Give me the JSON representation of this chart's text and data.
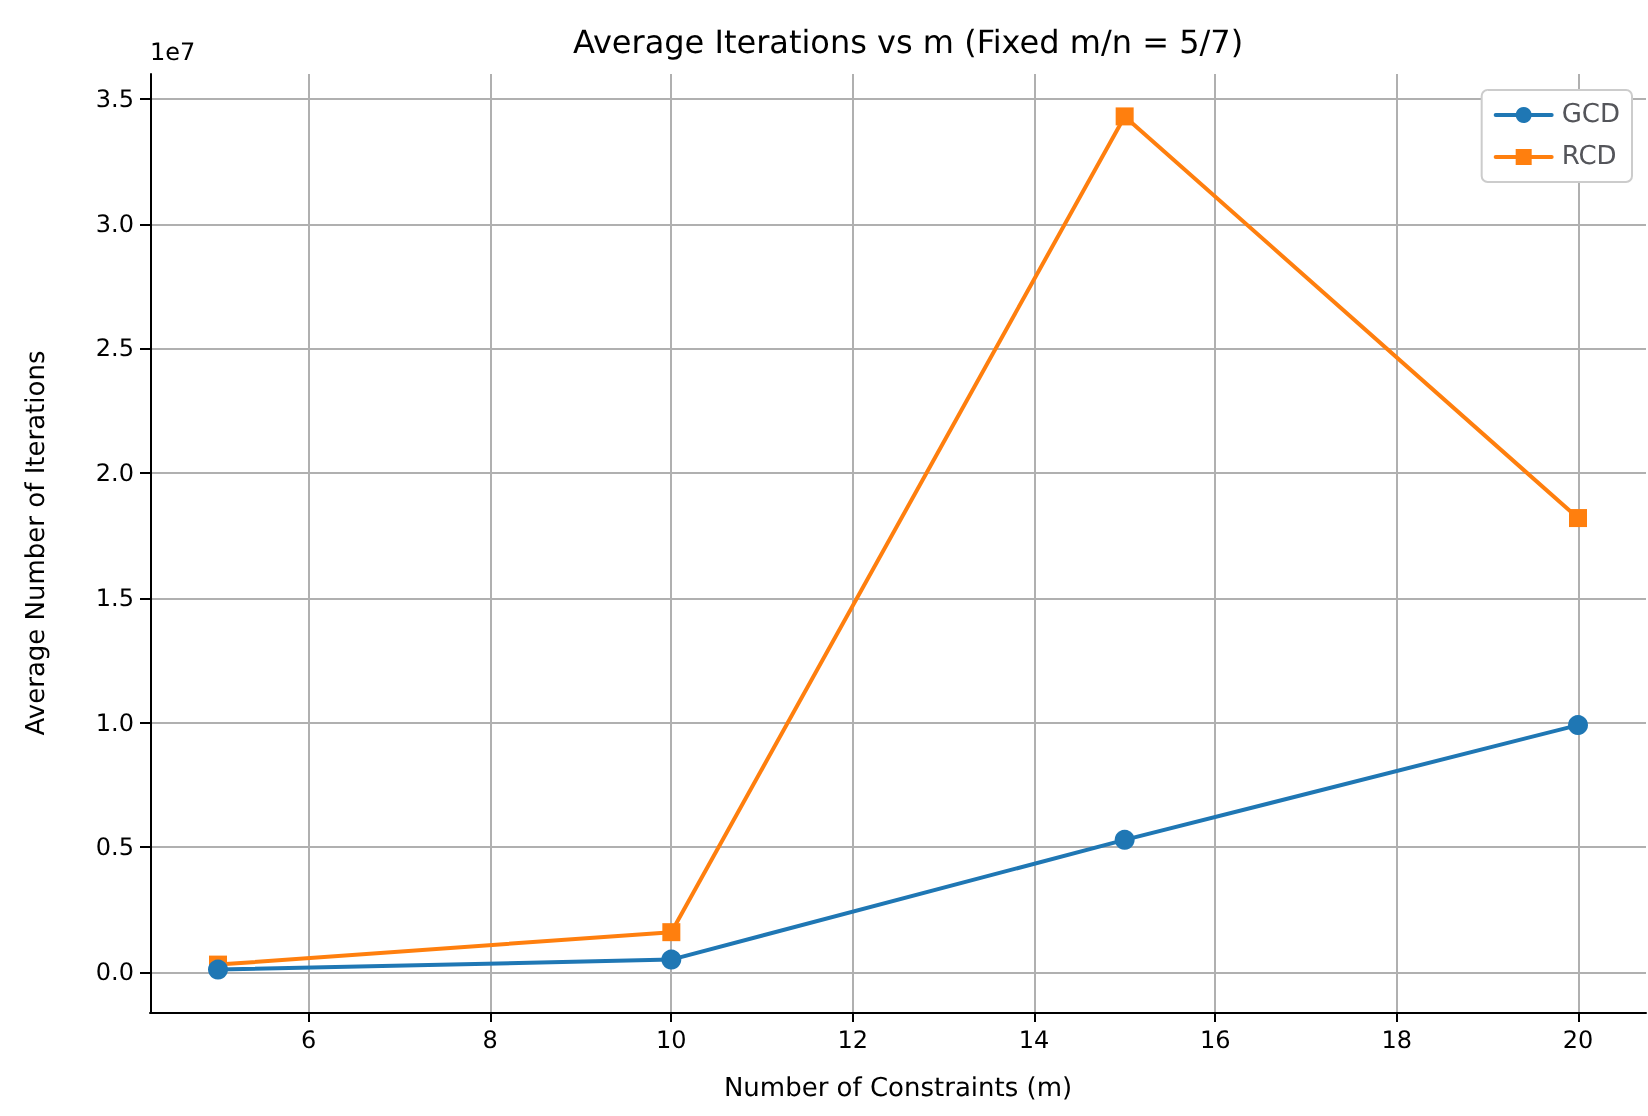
{
  "chart_data": {
    "type": "line",
    "title": "Average Iterations vs m (Fixed m/n = 5/7)",
    "xlabel": "Number of Constraints (m)",
    "ylabel": "Average Number of Iterations",
    "annotations": [
      "1e7"
    ],
    "x": [
      5,
      10,
      15,
      20
    ],
    "series": [
      {
        "name": "GCD",
        "color": "#1f77b4",
        "marker": "circle",
        "values": [
          0.01,
          0.05,
          0.53,
          0.99
        ]
      },
      {
        "name": "RCD",
        "color": "#ff7f0e",
        "marker": "square",
        "values": [
          0.03,
          0.16,
          3.43,
          1.82
        ]
      }
    ],
    "xlim": [
      4.25,
      20.75
    ],
    "xticks": [
      6,
      8,
      10,
      12,
      14,
      16,
      18,
      20
    ],
    "ylim": [
      -0.16,
      3.6
    ],
    "yticks": [
      {
        "value": 0,
        "label": "0.0"
      },
      0.5,
      {
        "value": 1,
        "label": "1.0"
      },
      1.5,
      {
        "value": 2,
        "label": "2.0"
      },
      2.5,
      {
        "value": 3,
        "label": "3.0"
      },
      3.5
    ],
    "grid": true,
    "legend": "top right",
    "line_style": "solid"
  }
}
